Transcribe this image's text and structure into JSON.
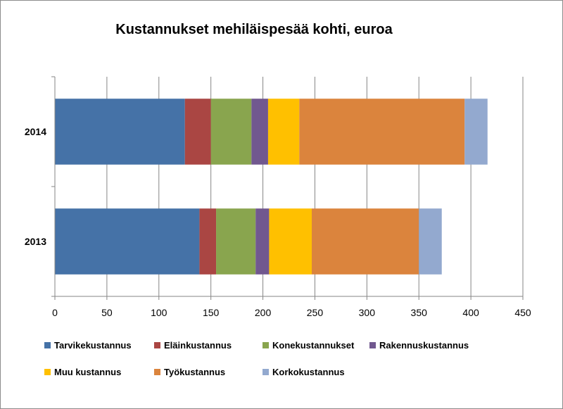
{
  "chart_data": {
    "type": "bar",
    "orientation": "horizontal",
    "stacked": true,
    "title": "Kustannukset mehiläispesää kohti, euroa",
    "categories": [
      "2013",
      "2014"
    ],
    "xlim": [
      0,
      450
    ],
    "xticks": [
      0,
      50,
      100,
      150,
      200,
      250,
      300,
      350,
      400,
      450
    ],
    "grid": "vertical",
    "legend_position": "bottom",
    "series": [
      {
        "name": "Tarvikekustannus",
        "color": "#4572A7",
        "values": [
          139,
          125
        ]
      },
      {
        "name": "Eläinkustannus",
        "color": "#AA4643",
        "values": [
          16,
          25
        ]
      },
      {
        "name": "Konekustannukset",
        "color": "#89A54E",
        "values": [
          38,
          39
        ]
      },
      {
        "name": "Rakennuskustannus",
        "color": "#71588F",
        "values": [
          13,
          16
        ]
      },
      {
        "name": "Muu kustannus",
        "color": "#FFC000",
        "values": [
          41,
          30
        ]
      },
      {
        "name": "Työkustannus",
        "color": "#DB843D",
        "values": [
          103,
          159
        ]
      },
      {
        "name": "Korkokustannus",
        "color": "#93A9CF",
        "values": [
          22,
          22
        ]
      }
    ]
  }
}
